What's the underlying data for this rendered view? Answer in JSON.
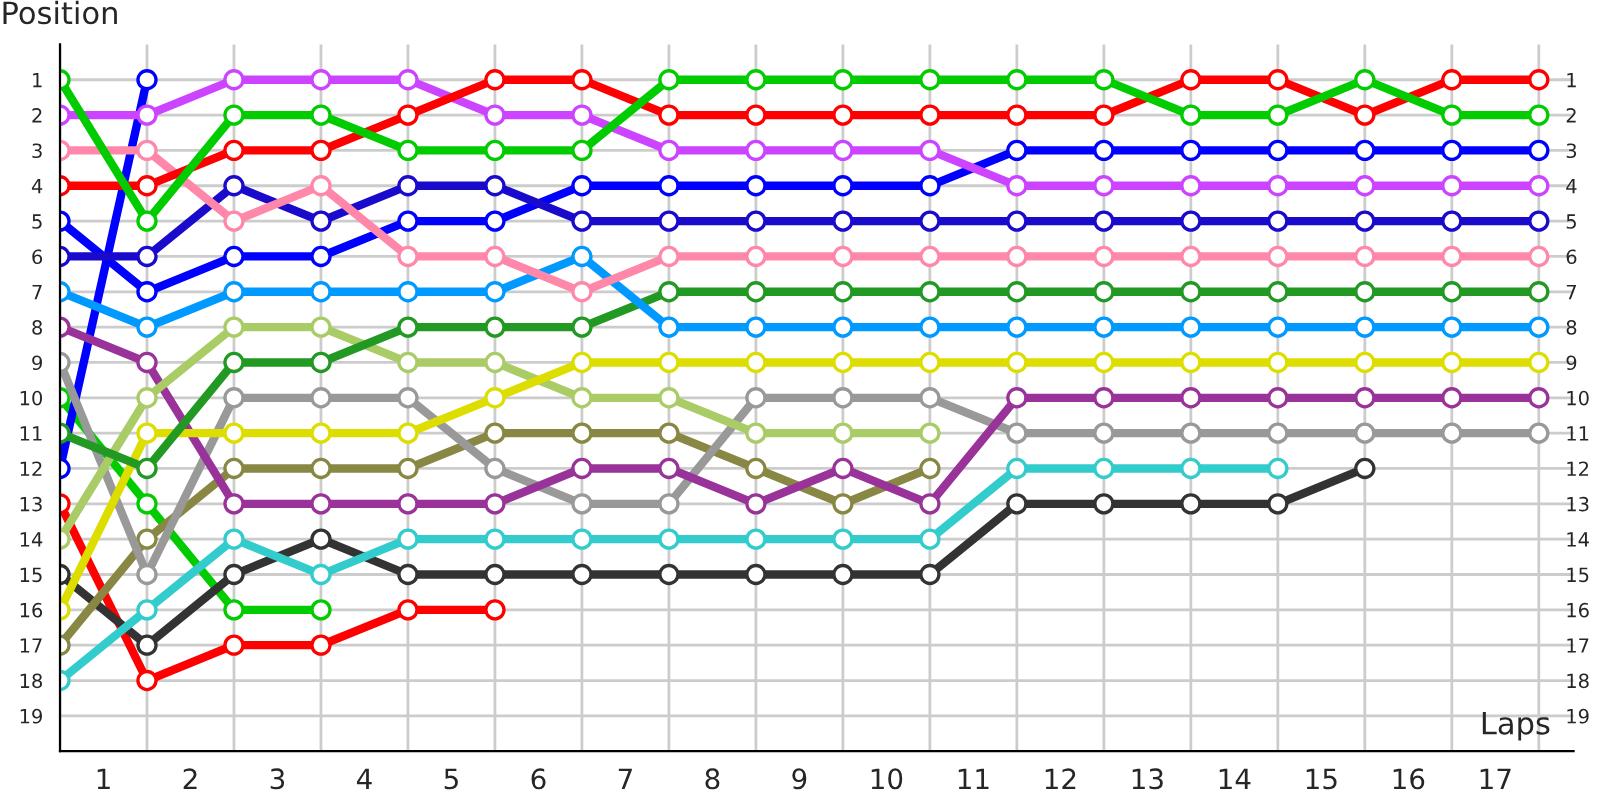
{
  "chart_data": {
    "type": "line",
    "xlabel": "Laps",
    "ylabel": "Position",
    "xlim": [
      0,
      17.4
    ],
    "xticks": [
      {
        "value": 0,
        "label": null
      },
      {
        "value": 0.5,
        "label": "1"
      },
      {
        "value": 1,
        "label": null
      },
      {
        "value": 1.5,
        "label": "2"
      },
      {
        "value": 2,
        "label": null
      },
      {
        "value": 2.5,
        "label": "3"
      },
      {
        "value": 3,
        "label": null
      },
      {
        "value": 3.5,
        "label": "4"
      },
      {
        "value": 4,
        "label": null
      },
      {
        "value": 4.5,
        "label": "5"
      },
      {
        "value": 5,
        "label": null
      },
      {
        "value": 5.5,
        "label": "6"
      },
      {
        "value": 6,
        "label": null
      },
      {
        "value": 6.5,
        "label": "7"
      },
      {
        "value": 7,
        "label": null
      },
      {
        "value": 7.5,
        "label": "8"
      },
      {
        "value": 8,
        "label": null
      },
      {
        "value": 8.5,
        "label": "9"
      },
      {
        "value": 9,
        "label": null
      },
      {
        "value": 9.5,
        "label": "10"
      },
      {
        "value": 10,
        "label": null
      },
      {
        "value": 10.5,
        "label": "11"
      },
      {
        "value": 11,
        "label": null
      },
      {
        "value": 11.5,
        "label": "12"
      },
      {
        "value": 12,
        "label": null
      },
      {
        "value": 12.5,
        "label": "13"
      },
      {
        "value": 13,
        "label": null
      },
      {
        "value": 13.5,
        "label": "14"
      },
      {
        "value": 14,
        "label": null
      },
      {
        "value": 14.5,
        "label": "15"
      },
      {
        "value": 15,
        "label": null
      },
      {
        "value": 15.5,
        "label": "16"
      },
      {
        "value": 16,
        "label": null
      },
      {
        "value": 16.5,
        "label": "17"
      },
      {
        "value": 17,
        "label": null
      }
    ],
    "ylim": [
      20,
      0
    ],
    "yticks": [
      1,
      2,
      3,
      4,
      5,
      6,
      7,
      8,
      9,
      10,
      11,
      12,
      13,
      14,
      15,
      16,
      17,
      18,
      19
    ],
    "y2lim": [
      20,
      0
    ],
    "y2ticks": [
      1,
      2,
      3,
      4,
      5,
      6,
      7,
      8,
      9,
      10,
      11,
      12,
      13,
      14,
      15,
      16,
      17,
      18,
      19
    ],
    "grid": true,
    "marker": "circle",
    "line_style": "solid",
    "x": [
      0,
      1,
      2,
      3,
      4,
      5,
      6,
      7,
      8,
      9,
      10,
      11,
      12,
      13,
      14,
      15,
      16,
      17
    ],
    "series": [
      {
        "color": "#00cc00",
        "values": [
          1,
          5,
          2,
          2,
          3,
          3,
          3,
          1,
          1,
          1,
          1,
          1,
          1,
          2,
          2,
          1,
          2,
          2
        ]
      },
      {
        "color": "#ff0000",
        "values": [
          4,
          4,
          3,
          3,
          2,
          1,
          1,
          2,
          2,
          2,
          2,
          2,
          2,
          1,
          1,
          2,
          1,
          1
        ]
      },
      {
        "color": "#cc44ff",
        "values": [
          2,
          2,
          1,
          1,
          1,
          2,
          2,
          3,
          3,
          3,
          3,
          4,
          4,
          4,
          4,
          4,
          4,
          4
        ]
      },
      {
        "color": "#ff88aa",
        "values": [
          3,
          3,
          5,
          4,
          6,
          6,
          7,
          6,
          6,
          6,
          6,
          6,
          6,
          6,
          6,
          6,
          6,
          6
        ]
      },
      {
        "color": "#1a0acc",
        "values": [
          6,
          6,
          4,
          5,
          4,
          4,
          5,
          5,
          5,
          5,
          5,
          5,
          5,
          5,
          5,
          5,
          5,
          5
        ]
      },
      {
        "color": "#0000ff",
        "values": [
          5,
          7,
          6,
          6,
          5,
          5,
          4,
          4,
          4,
          4,
          4,
          3,
          3,
          3,
          3,
          3,
          3,
          3
        ]
      },
      {
        "color": "#0099ff",
        "values": [
          7,
          8,
          7,
          7,
          7,
          7,
          6,
          8,
          8,
          8,
          8,
          8,
          8,
          8,
          8,
          8,
          8,
          8
        ]
      },
      {
        "color": "#229922",
        "values": [
          11,
          12,
          9,
          9,
          8,
          8,
          8,
          7,
          7,
          7,
          7,
          7,
          7,
          7,
          7,
          7,
          7,
          7
        ]
      },
      {
        "color": "#dddd00",
        "values": [
          16,
          11,
          11,
          11,
          11,
          10,
          9,
          9,
          9,
          9,
          9,
          9,
          9,
          9,
          9,
          9,
          9,
          9
        ]
      },
      {
        "color": "#aacc66",
        "values": [
          14,
          10,
          8,
          8,
          9,
          9,
          10,
          10,
          11,
          11,
          11,
          null,
          null,
          null,
          null,
          null,
          null,
          null
        ]
      },
      {
        "color": "#993399",
        "values": [
          8,
          9,
          13,
          13,
          13,
          13,
          12,
          12,
          13,
          12,
          13,
          10,
          10,
          10,
          10,
          10,
          10,
          10
        ]
      },
      {
        "color": "#999999",
        "values": [
          9,
          15,
          10,
          10,
          10,
          12,
          13,
          13,
          10,
          10,
          10,
          11,
          11,
          11,
          11,
          11,
          11,
          11
        ]
      },
      {
        "color": "#888844",
        "values": [
          17,
          14,
          12,
          12,
          12,
          11,
          11,
          11,
          12,
          13,
          12,
          null,
          null,
          null,
          null,
          null,
          null,
          null
        ]
      },
      {
        "color": "#33cccc",
        "values": [
          18,
          16,
          14,
          15,
          14,
          14,
          14,
          14,
          14,
          14,
          14,
          12,
          12,
          12,
          12,
          null,
          null,
          null
        ]
      },
      {
        "color": "#333333",
        "values": [
          15,
          17,
          15,
          14,
          15,
          15,
          15,
          15,
          15,
          15,
          15,
          13,
          13,
          13,
          13,
          12,
          null,
          null
        ]
      },
      {
        "color": "#0000ff",
        "values": [
          12,
          1,
          null,
          null,
          null,
          null,
          null,
          null,
          null,
          null,
          null,
          null,
          null,
          null,
          null,
          null,
          null,
          null
        ]
      },
      {
        "color": "#00cc00",
        "values": [
          10,
          13,
          16,
          16,
          null,
          null,
          null,
          null,
          null,
          null,
          null,
          null,
          null,
          null,
          null,
          null,
          null,
          null
        ]
      },
      {
        "color": "#ff0000",
        "values": [
          13,
          18,
          17,
          17,
          16,
          16,
          null,
          null,
          null,
          null,
          null,
          null,
          null,
          null,
          null,
          null,
          null,
          null
        ]
      }
    ]
  }
}
